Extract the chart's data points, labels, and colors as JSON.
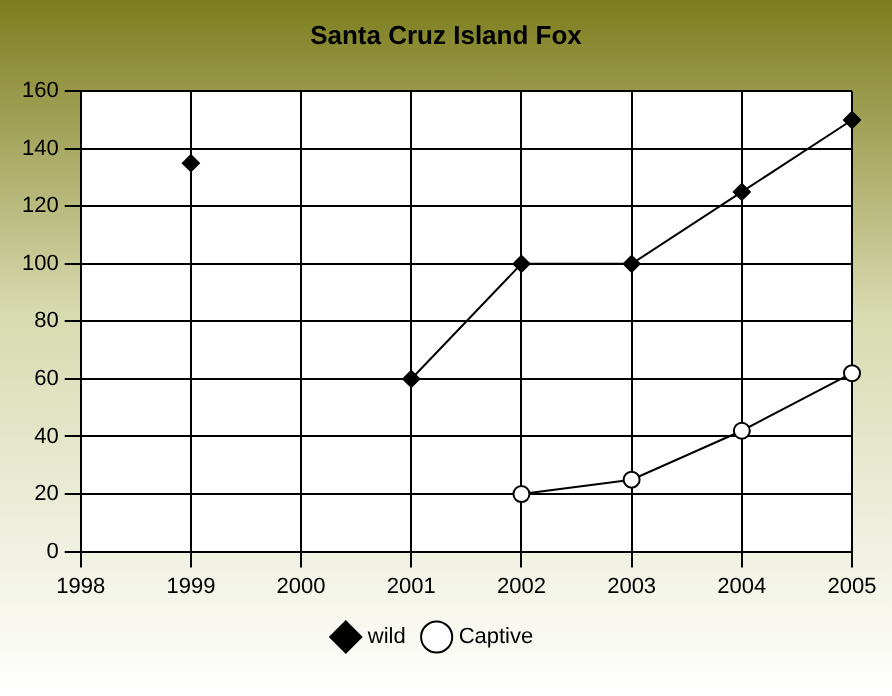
{
  "chart_data": {
    "type": "line",
    "title": "Santa Cruz Island Fox",
    "categories": [
      "1998",
      "1999",
      "2000",
      "2001",
      "2002",
      "2003",
      "2004",
      "2005"
    ],
    "series": [
      {
        "name": "wild",
        "color": "#000000",
        "marker": "diamond",
        "values": [
          null,
          135,
          null,
          60,
          100,
          100,
          125,
          150
        ]
      },
      {
        "name": "Captive",
        "color": "#000000",
        "marker": "circle",
        "values": [
          null,
          null,
          null,
          null,
          20,
          25,
          42,
          62
        ]
      }
    ],
    "ylim": [
      0,
      160
    ],
    "yticks": [
      0,
      20,
      40,
      60,
      80,
      100,
      120,
      140,
      160
    ],
    "grid": true,
    "legend": "bottom"
  }
}
